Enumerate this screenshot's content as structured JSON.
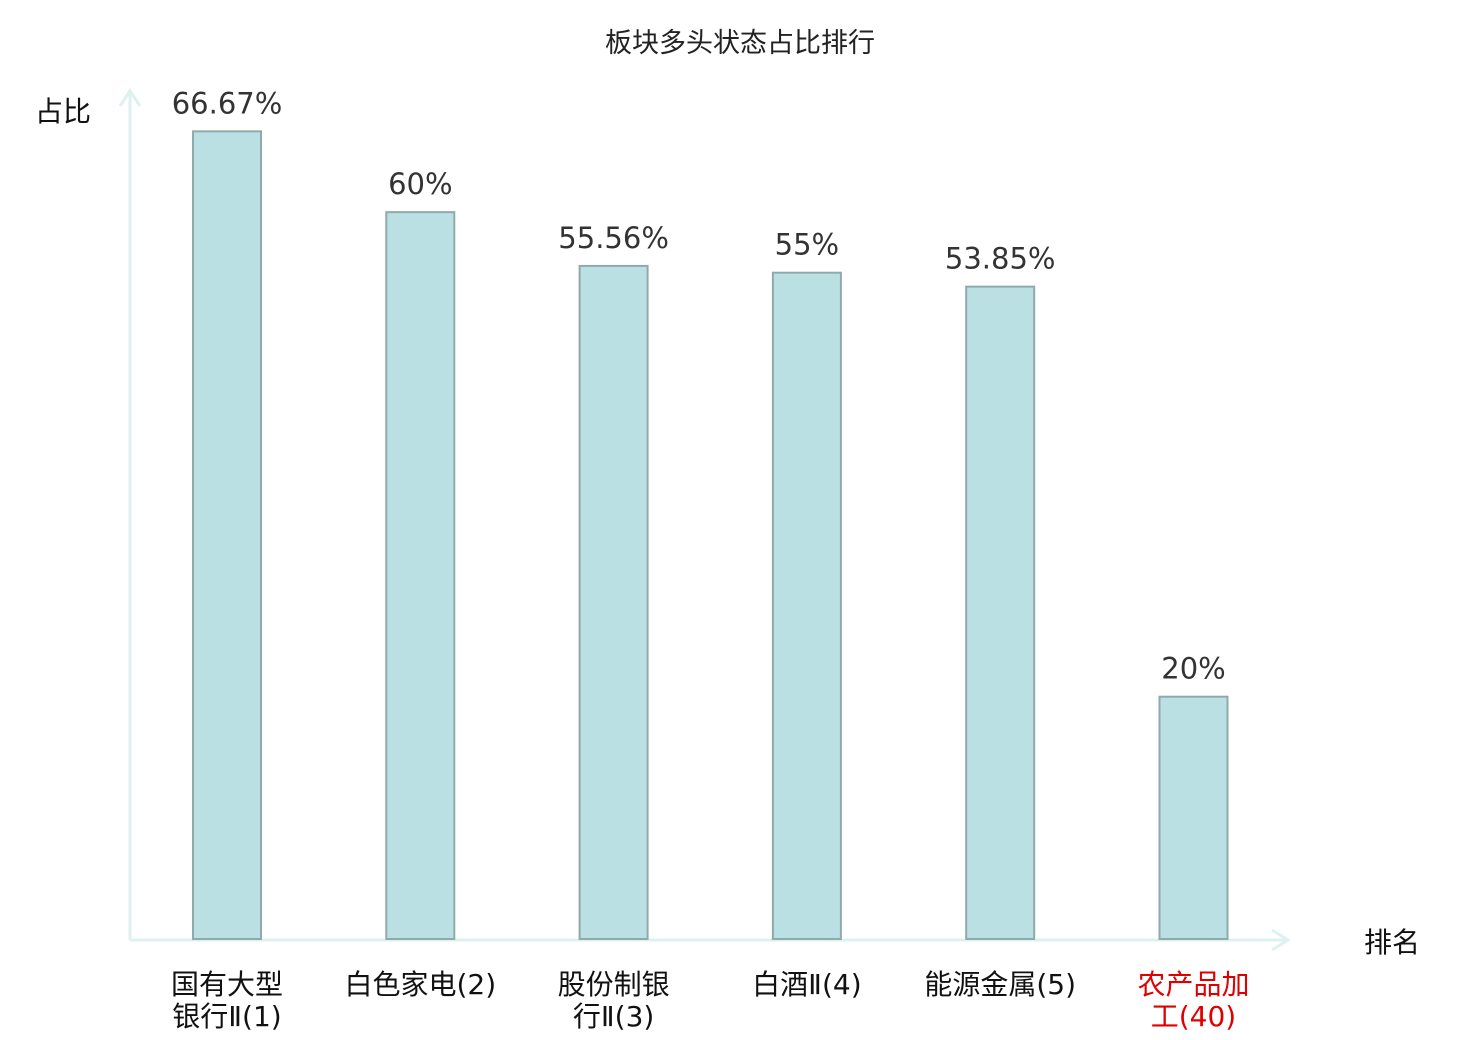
{
  "chart_data": {
    "type": "bar",
    "title": "板块多头状态占比排行",
    "xlabel": "排名",
    "ylabel": "占比",
    "categories": [
      [
        "国有大型",
        "银行Ⅱ(1)"
      ],
      [
        "白色家电(2)"
      ],
      [
        "股份制银",
        "行Ⅱ(3)"
      ],
      [
        "白酒Ⅱ(4)"
      ],
      [
        "能源金属(5)"
      ],
      [
        "农产品加",
        "工(40)"
      ]
    ],
    "values": [
      66.67,
      60,
      55.56,
      55,
      53.85,
      20
    ],
    "data_labels": [
      "66.67%",
      "60%",
      "55.56%",
      "55%",
      "53.85%",
      "20%"
    ],
    "highlighted_category_index": 5,
    "ylim": [
      0,
      70
    ],
    "grid": false,
    "legend": "none",
    "colors": {
      "bar_fill": "#bbe0e3",
      "bar_stroke": "#8faaaa",
      "axis": "#ddf1ef",
      "highlight_label": "#e00000",
      "normal_label": "#111111"
    }
  }
}
